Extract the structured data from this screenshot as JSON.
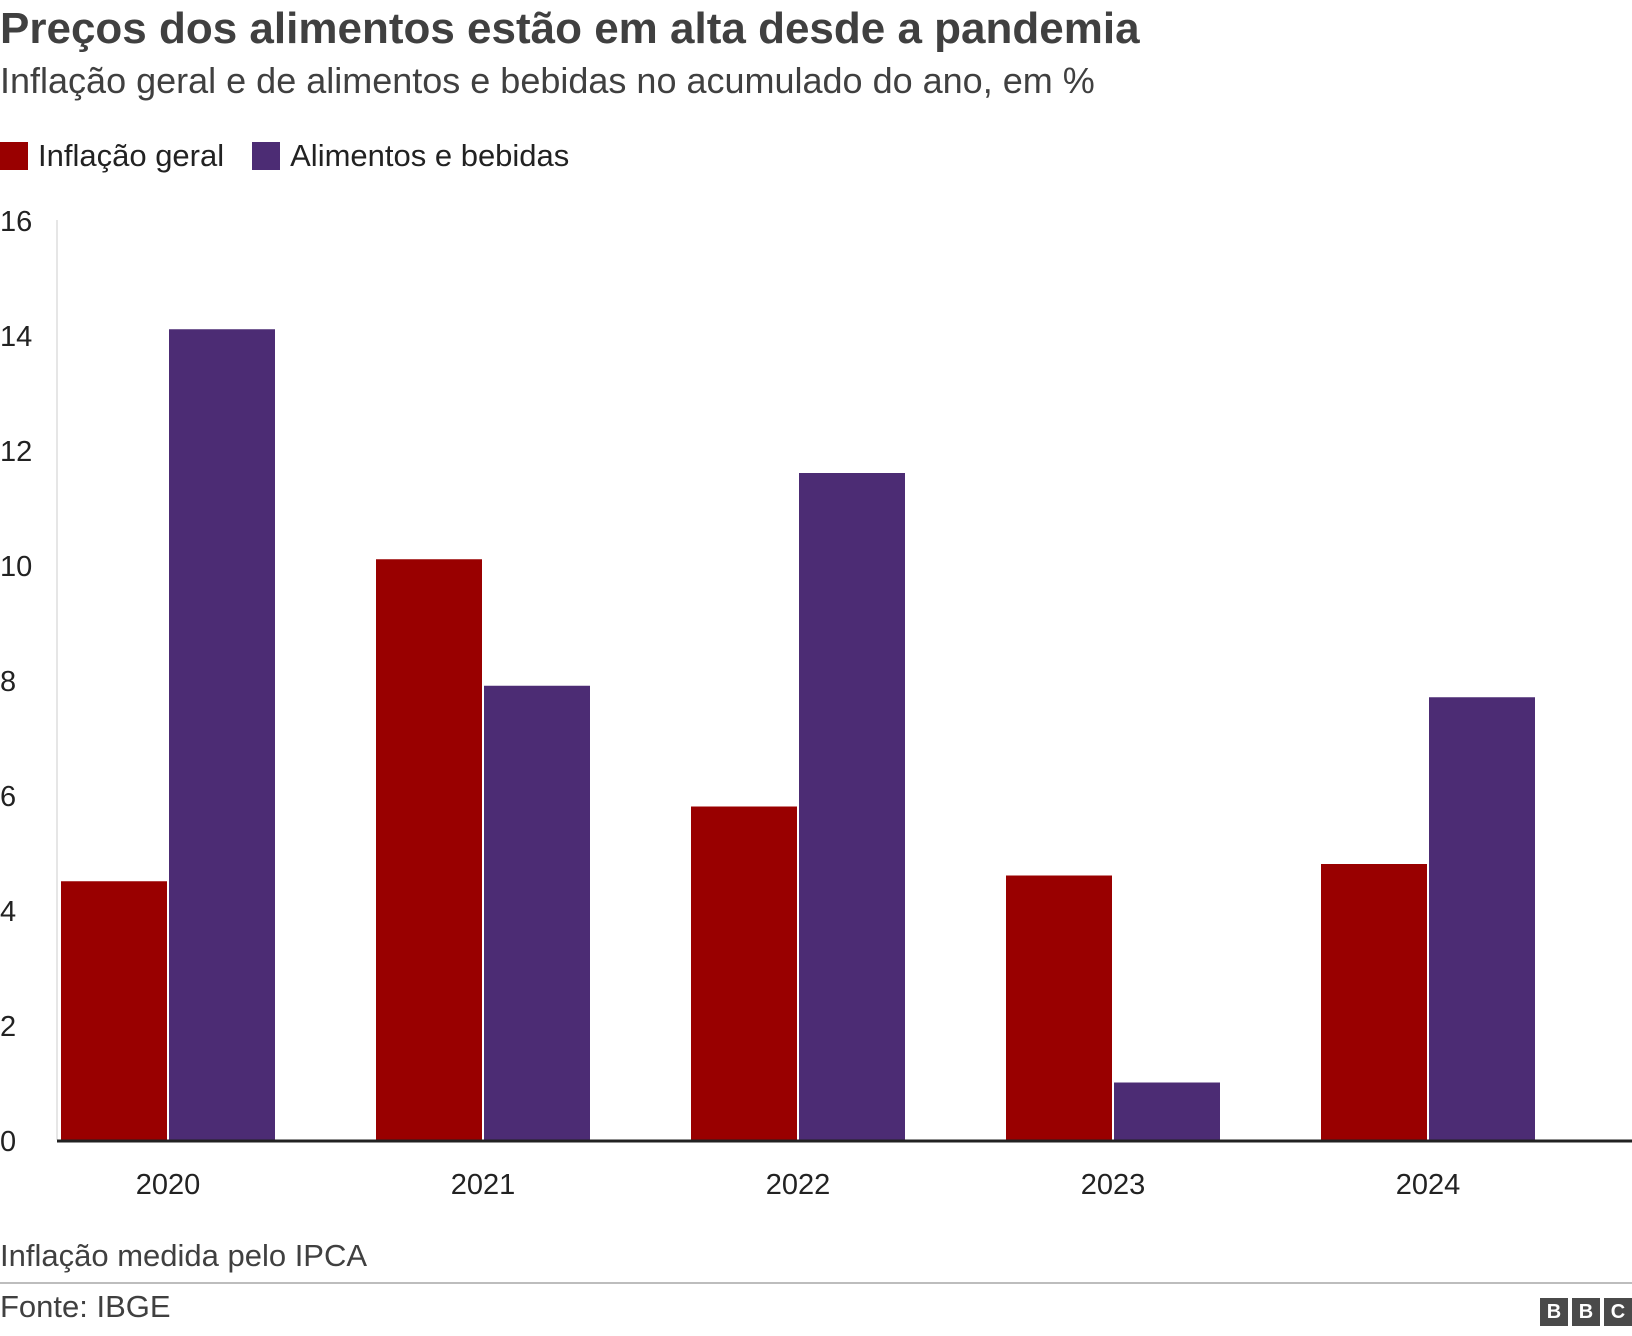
{
  "header": {
    "title": "Preços dos alimentos estão em alta desde a pandemia",
    "subtitle": "Inflação geral e de alimentos e bebidas no acumulado do ano, em %"
  },
  "legend": [
    {
      "label": "Inflação geral",
      "color": "#990000"
    },
    {
      "label": "Alimentos e bebidas",
      "color": "#4c2c74"
    }
  ],
  "chart_data": {
    "type": "bar",
    "categories": [
      "2020",
      "2021",
      "2022",
      "2023",
      "2024"
    ],
    "series": [
      {
        "name": "Inflação geral",
        "color": "#990000",
        "values": [
          4.5,
          10.1,
          5.8,
          4.6,
          4.8
        ]
      },
      {
        "name": "Alimentos e bebidas",
        "color": "#4c2c74",
        "values": [
          14.1,
          7.9,
          11.6,
          1.0,
          7.7
        ]
      }
    ],
    "yticks": [
      "0",
      "2",
      "4",
      "6",
      "8",
      "10",
      "12",
      "14",
      "16"
    ],
    "ylim": [
      0,
      16
    ],
    "xlabel": "",
    "ylabel": "",
    "grid": false,
    "legend_position": "top-left"
  },
  "footer": {
    "note": "Inflação medida pelo IPCA",
    "source": "Fonte: IBGE",
    "logo": [
      "B",
      "B",
      "C"
    ]
  }
}
